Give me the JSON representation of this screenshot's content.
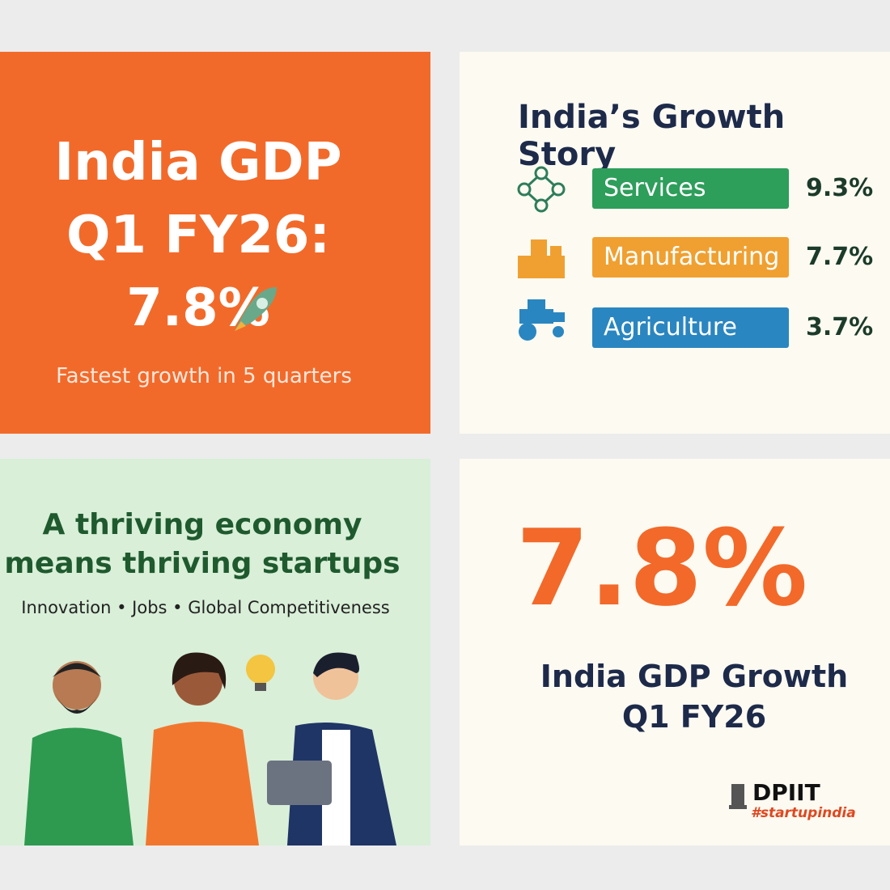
{
  "top_left": {
    "title_lines": [
      "India GDP",
      "Q1 FY26:",
      "7.8%"
    ],
    "subtitle": "Fastest growth in 5 quarters"
  },
  "top_right": {
    "title": "India’s Growth Story",
    "sectors": [
      {
        "label": "Services",
        "value": "9.3%"
      },
      {
        "label": "Manufacturing",
        "value": "7.7%"
      },
      {
        "label": "Agriculture",
        "value": "3.7%"
      }
    ]
  },
  "bottom_left": {
    "headline_lines": [
      "A thriving economy",
      "means thriving startups"
    ],
    "tagline": "Innovation • Jobs • Global Competitiveness"
  },
  "bottom_right": {
    "big_number": "7.8%",
    "caption_lines": [
      "India GDP Growth",
      "Q1 FY26"
    ],
    "logo": {
      "name": "DPIIT",
      "hashtag": "#startupindia"
    }
  }
}
